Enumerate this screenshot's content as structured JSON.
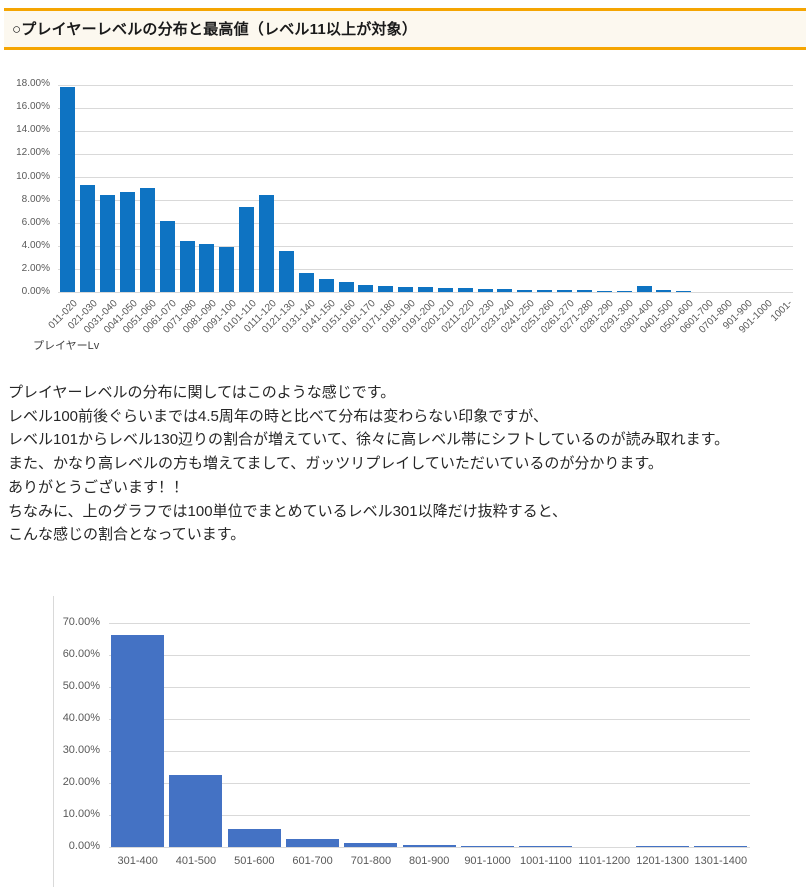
{
  "header": {
    "title": "○プレイヤーレベルの分布と最高値（レベル11以上が対象）"
  },
  "paragraphs": [
    "プレイヤーレベルの分布に関してはこのような感じです。",
    "レベル100前後ぐらいまでは4.5周年の時と比べて分布は変わらない印象ですが、",
    "レベル101からレベル130辺りの割合が増えていて、徐々に高レベル帯にシフトしているのが読み取れます。",
    "また、かなり高レベルの方も増えてまして、ガッツリプレイしていただいているのが分かります。",
    "ありがとうございます！！",
    "ちなみに、上のグラフでは100単位でまとめているレベル301以降だけ抜粋すると、",
    "こんな感じの割合となっています。"
  ],
  "colors": {
    "chart1_bar": "#0e73c2",
    "chart2_bar": "#4472c4",
    "gridline": "#d9d9d9",
    "axis_text": "#595959",
    "header_border": "#f5a502",
    "header_bg": "#fcf8ef"
  },
  "chart_data": [
    {
      "type": "bar",
      "title": "",
      "xlabel": "プレイヤーLv",
      "ylabel": "",
      "grid": true,
      "legend": "none",
      "ylim": [
        0,
        18
      ],
      "yticks": [
        "0.00%",
        "2.00%",
        "4.00%",
        "6.00%",
        "8.00%",
        "10.00%",
        "12.00%",
        "14.00%",
        "16.00%",
        "18.00%"
      ],
      "x_label_rotation": -45,
      "color": "#0e73c2",
      "categories": [
        "011-020",
        "021-030",
        "0031-040",
        "0041-050",
        "0051-060",
        "0061-070",
        "0071-080",
        "0081-090",
        "0091-100",
        "0101-110",
        "0111-120",
        "0121-130",
        "0131-140",
        "0141-150",
        "0151-160",
        "0161-170",
        "0171-180",
        "0181-190",
        "0191-200",
        "0201-210",
        "0211-220",
        "0221-230",
        "0231-240",
        "0241-250",
        "0251-260",
        "0261-270",
        "0271-280",
        "0281-290",
        "0291-300",
        "0301-400",
        "0401-500",
        "0501-600",
        "0601-700",
        "0701-800",
        "901-900",
        "901-1000",
        "1001-"
      ],
      "values": [
        17.8,
        9.3,
        8.4,
        8.7,
        9.0,
        6.15,
        4.45,
        4.2,
        3.9,
        7.4,
        8.45,
        3.6,
        1.65,
        1.1,
        0.9,
        0.65,
        0.55,
        0.45,
        0.4,
        0.38,
        0.35,
        0.3,
        0.22,
        0.2,
        0.2,
        0.2,
        0.18,
        0.1,
        0.05,
        0.5,
        0.2,
        0.05,
        0.02,
        0.02,
        0.02,
        0.01,
        0
      ]
    },
    {
      "type": "bar",
      "title": "",
      "xlabel": "",
      "ylabel": "",
      "grid": true,
      "legend": "none",
      "ylim": [
        0,
        70
      ],
      "yticks": [
        "0.00%",
        "10.00%",
        "20.00%",
        "30.00%",
        "40.00%",
        "50.00%",
        "60.00%",
        "70.00%"
      ],
      "x_label_rotation": 0,
      "color": "#4472c4",
      "categories": [
        "301-400",
        "401-500",
        "501-600",
        "601-700",
        "701-800",
        "801-900",
        "901-1000",
        "1001-1100",
        "1101-1200",
        "1201-1300",
        "1301-1400"
      ],
      "values": [
        66.3,
        22.5,
        5.6,
        2.55,
        1.25,
        0.7,
        0.25,
        0.25,
        0.05,
        0.3,
        0.25
      ]
    }
  ]
}
